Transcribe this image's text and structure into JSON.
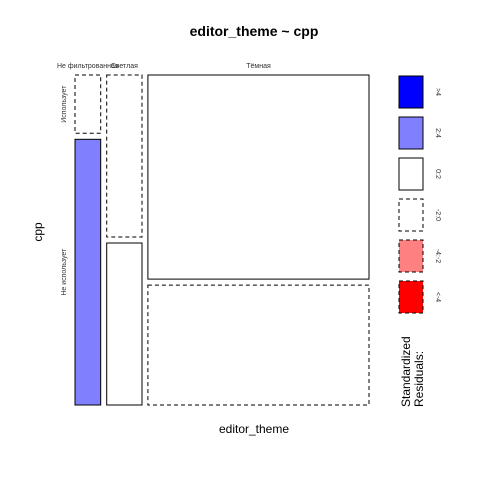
{
  "chart_data": {
    "type": "mosaic",
    "title": "editor_theme ~ cpp",
    "xlabel": "editor_theme",
    "ylabel": "cpp",
    "x_categories": [
      "Не фильтрованная",
      "Светлая",
      "Тёмная"
    ],
    "y_categories": [
      "Использует",
      "Не использует"
    ],
    "x_shares": [
      0.091,
      0.125,
      0.784
    ],
    "cells": [
      {
        "x": "Не фильтрованная",
        "y": "Использует",
        "share": 0.18,
        "residual_class": "-2:0"
      },
      {
        "x": "Не фильтрованная",
        "y": "Не использует",
        "share": 0.82,
        "residual_class": "2:4"
      },
      {
        "x": "Светлая",
        "y": "Использует",
        "share": 0.5,
        "residual_class": "-2:0"
      },
      {
        "x": "Светлая",
        "y": "Не использует",
        "share": 0.5,
        "residual_class": "0:2"
      },
      {
        "x": "Тёмная",
        "y": "Использует",
        "share": 0.63,
        "residual_class": "0:2"
      },
      {
        "x": "Тёмная",
        "y": "Не использует",
        "share": 0.37,
        "residual_class": "-2:0"
      }
    ],
    "legend": {
      "title_lines": [
        "Standardized",
        "Residuals:"
      ],
      "items": [
        {
          "label": ">4",
          "color": "#0000ff",
          "dashed": false
        },
        {
          "label": "2:4",
          "color": "#8080ff",
          "dashed": false
        },
        {
          "label": "0:2",
          "color": "#ffffff",
          "dashed": false
        },
        {
          "label": "-2:0",
          "color": "#ffffff",
          "dashed": true
        },
        {
          "label": "-4:-2",
          "color": "#ff8080",
          "dashed": true
        },
        {
          "label": "<-4",
          "color": "#ff0000",
          "dashed": true
        }
      ]
    }
  }
}
